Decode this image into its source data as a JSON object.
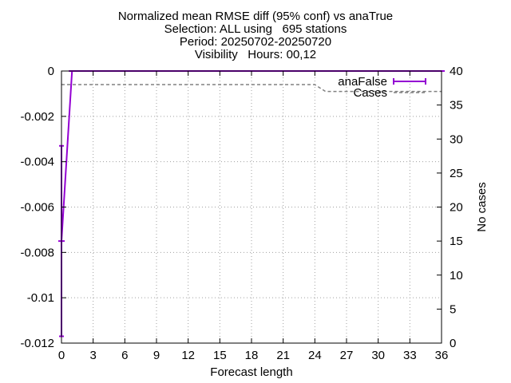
{
  "chart_data": {
    "type": "line",
    "title_lines": [
      "Normalized mean RMSE diff (95% conf) vs anaTrue",
      "Selection: ALL using   695 stations",
      "Period: 20250702-20250720",
      "Visibility   Hours: 00,12"
    ],
    "xlabel": "Forecast length",
    "ylabel": "",
    "y2label": "No cases",
    "xlim": [
      0,
      36
    ],
    "ylim": [
      -0.012,
      0
    ],
    "y2lim": [
      0,
      40
    ],
    "x_ticks": [
      "0",
      "3",
      "6",
      "9",
      "12",
      "15",
      "18",
      "21",
      "24",
      "27",
      "30",
      "33",
      "36"
    ],
    "y_ticks": [
      "0",
      "-0.002",
      "-0.004",
      "-0.006",
      "-0.008",
      "-0.01",
      "-0.012"
    ],
    "y2_ticks": [
      "0",
      "5",
      "10",
      "15",
      "20",
      "25",
      "30",
      "35",
      "40"
    ],
    "grid": true,
    "legend_position": "top-right",
    "series": [
      {
        "name": "anaFalse",
        "axis": "y",
        "color": "#9400d3",
        "x": [
          0,
          1,
          2,
          3,
          4,
          5,
          6,
          7,
          8,
          9,
          10,
          11,
          12,
          13,
          14,
          15,
          16,
          17,
          18,
          19,
          20,
          21,
          22,
          23,
          24,
          27,
          30,
          33,
          36
        ],
        "values": [
          -0.0075,
          0,
          0,
          0,
          0,
          0,
          0,
          0,
          0,
          0,
          0,
          0,
          0,
          0,
          0,
          0,
          0,
          0,
          0,
          0,
          0,
          0,
          0,
          0,
          0,
          0,
          0,
          0,
          0
        ],
        "err_low": [
          -0.0117,
          0,
          0,
          0,
          0,
          0,
          0,
          0,
          0,
          0,
          0,
          0,
          0,
          0,
          0,
          0,
          0,
          0,
          0,
          0,
          0,
          0,
          0,
          0,
          0,
          0,
          0,
          0,
          0
        ],
        "err_high": [
          -0.0033,
          0,
          0,
          0,
          0,
          0,
          0,
          0,
          0,
          0,
          0,
          0,
          0,
          0,
          0,
          0,
          0,
          0,
          0,
          0,
          0,
          0,
          0,
          0,
          0,
          0,
          0,
          0,
          0
        ]
      },
      {
        "name": "Cases",
        "axis": "y2",
        "color": "#808080",
        "x": [
          0,
          1,
          24,
          25,
          27,
          30,
          33,
          36
        ],
        "values": [
          38,
          38,
          38,
          37,
          37,
          37,
          37,
          37
        ]
      }
    ]
  }
}
